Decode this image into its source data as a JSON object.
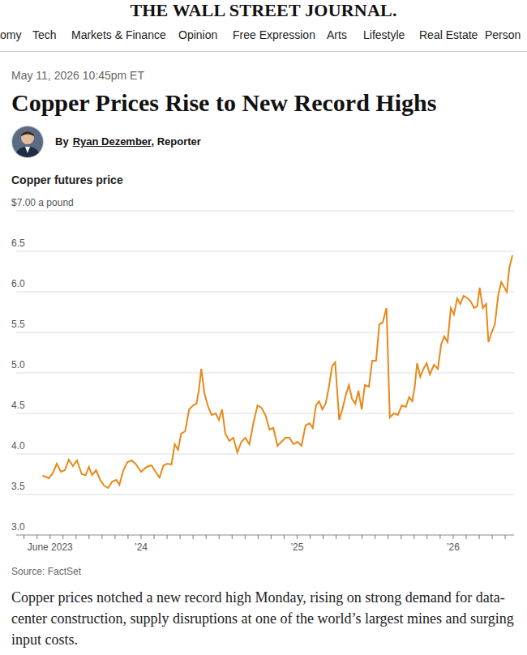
{
  "page": {
    "masthead": "THE WALL STREET JOURNAL.",
    "nav": [
      "omy",
      "Tech",
      "Markets & Finance",
      "Opinion",
      "Free Expression",
      "Arts",
      "Lifestyle",
      "Real Estate",
      "Person"
    ],
    "date": "May 11, 2026 10:45pm ET",
    "headline": "Copper Prices Rise to New Record Highs",
    "byline": {
      "prefix": "By",
      "author": "Ryan Dezember",
      "suffix": ", Reporter"
    },
    "body": "Copper prices notched a new record high Monday, rising on strong demand for data-center construction, supply disruptions at one of the world’s largest mines and surging input costs."
  },
  "chart_data": {
    "type": "line",
    "title": "Copper futures price",
    "source": "Source: FactSet",
    "color": "#e8891a",
    "grid": true,
    "xlim": [
      2023.2,
      2026.39
    ],
    "xticks": [
      {
        "value": 2023.417,
        "label": "June 2023"
      },
      {
        "value": 2024,
        "label": "’24"
      },
      {
        "value": 2025,
        "label": "’25"
      },
      {
        "value": 2026,
        "label": "’26"
      }
    ],
    "ylim": [
      3,
      7
    ],
    "yticks": [
      {
        "value": 3,
        "label": "3.0"
      },
      3.5,
      {
        "value": 4,
        "label": "4.0"
      },
      4.5,
      {
        "value": 5,
        "label": "5.0"
      },
      5.5,
      {
        "value": 6,
        "label": "6.0"
      },
      6.5,
      {
        "value": 7,
        "label": "$7.00 a pound"
      }
    ],
    "x": [
      2023.368,
      2023.388,
      2023.409,
      2023.434,
      2023.46,
      2023.486,
      2023.512,
      2023.537,
      2023.563,
      2023.589,
      2023.62,
      2023.645,
      2023.666,
      2023.686,
      2023.712,
      2023.738,
      2023.763,
      2023.789,
      2023.815,
      2023.841,
      2023.861,
      2023.887,
      2023.913,
      2023.938,
      2023.964,
      2024.0,
      2024.036,
      2024.067,
      2024.103,
      2024.118,
      2024.144,
      2024.17,
      2024.195,
      2024.216,
      2024.237,
      2024.257,
      2024.283,
      2024.308,
      2024.334,
      2024.355,
      2024.37,
      2024.386,
      2024.406,
      2024.427,
      2024.452,
      2024.478,
      2024.499,
      2024.519,
      2024.54,
      2024.566,
      2024.591,
      2024.617,
      2024.643,
      2024.668,
      2024.694,
      2024.72,
      2024.746,
      2024.771,
      2024.797,
      2024.823,
      2024.848,
      2024.874,
      2024.9,
      2024.925,
      2024.951,
      2024.977,
      2025.003,
      2025.028,
      2025.054,
      2025.08,
      2025.1,
      2025.121,
      2025.141,
      2025.162,
      2025.183,
      2025.203,
      2025.224,
      2025.244,
      2025.27,
      2025.29,
      2025.311,
      2025.332,
      2025.352,
      2025.373,
      2025.393,
      2025.414,
      2025.434,
      2025.46,
      2025.481,
      2025.506,
      2025.527,
      2025.548,
      2025.573,
      2025.594,
      2025.62,
      2025.645,
      2025.671,
      2025.697,
      2025.717,
      2025.738,
      2025.753,
      2025.769,
      2025.789,
      2025.81,
      2025.83,
      2025.851,
      2025.877,
      2025.902,
      2025.923,
      2025.943,
      2025.964,
      2025.985,
      2026.005,
      2026.026,
      2026.046,
      2026.067,
      2026.093,
      2026.113,
      2026.134,
      2026.154,
      2026.17,
      2026.19,
      2026.211,
      2026.226,
      2026.247,
      2026.267,
      2026.288,
      2026.308,
      2026.329,
      2026.344,
      2026.36,
      2026.38
    ],
    "values": [
      3.73,
      3.72,
      3.7,
      3.76,
      3.88,
      3.78,
      3.8,
      3.93,
      3.85,
      3.92,
      3.75,
      3.74,
      3.84,
      3.74,
      3.8,
      3.68,
      3.61,
      3.58,
      3.66,
      3.68,
      3.62,
      3.8,
      3.9,
      3.92,
      3.88,
      3.78,
      3.84,
      3.86,
      3.75,
      3.71,
      3.86,
      3.88,
      3.87,
      4.12,
      4.05,
      4.25,
      4.28,
      4.55,
      4.6,
      4.62,
      4.78,
      5.05,
      4.75,
      4.6,
      4.48,
      4.5,
      4.42,
      4.55,
      4.25,
      4.16,
      4.2,
      4.02,
      4.15,
      4.2,
      4.12,
      4.38,
      4.6,
      4.57,
      4.48,
      4.3,
      4.32,
      4.1,
      4.15,
      4.2,
      4.2,
      4.12,
      4.15,
      4.1,
      4.35,
      4.38,
      4.32,
      4.6,
      4.65,
      4.55,
      4.62,
      4.82,
      5.08,
      5.13,
      4.42,
      4.55,
      4.72,
      4.85,
      4.68,
      4.62,
      4.78,
      4.55,
      4.85,
      4.83,
      5.15,
      5.15,
      5.6,
      5.62,
      5.8,
      4.45,
      4.5,
      4.48,
      4.6,
      4.58,
      4.7,
      4.65,
      4.82,
      5.12,
      4.95,
      5.05,
      5.12,
      4.98,
      5.1,
      5.05,
      5.35,
      5.45,
      5.38,
      5.8,
      5.72,
      5.92,
      5.85,
      5.95,
      5.92,
      5.88,
      5.8,
      5.82,
      6.05,
      5.8,
      5.85,
      5.38,
      5.5,
      5.6,
      5.95,
      6.12,
      6.05,
      6.0,
      6.3,
      6.45
    ]
  }
}
